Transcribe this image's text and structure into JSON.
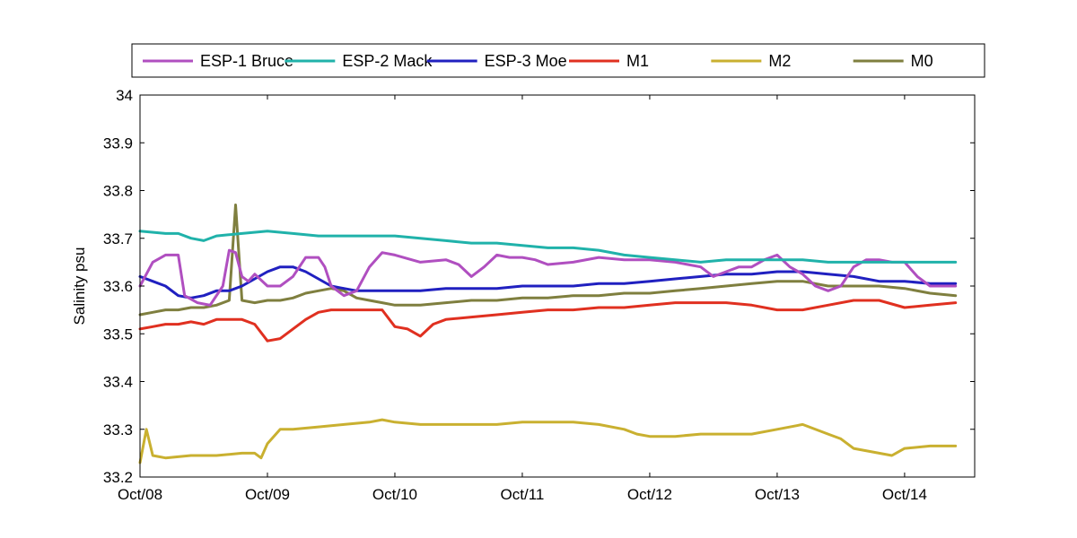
{
  "chart_data": {
    "type": "line",
    "title": "",
    "xlabel": "",
    "ylabel": "Salinity psu",
    "ylim": [
      33.2,
      34.0
    ],
    "yticks": [
      33.2,
      33.3,
      33.4,
      33.5,
      33.6,
      33.7,
      33.8,
      33.9,
      34.0
    ],
    "ytick_labels": [
      "33.2",
      "33.3",
      "33.4",
      "33.5",
      "33.6",
      "33.7",
      "33.8",
      "33.9",
      "34"
    ],
    "xlim": [
      0,
      6.55
    ],
    "xticks": [
      0,
      1,
      2,
      3,
      4,
      5,
      6
    ],
    "xtick_labels": [
      "Oct/08",
      "Oct/09",
      "Oct/10",
      "Oct/11",
      "Oct/12",
      "Oct/13",
      "Oct/14"
    ],
    "grid": false,
    "legend_position": "top",
    "series": [
      {
        "name": "ESP-1 Bruce",
        "color": "#b04fc0",
        "x": [
          0.0,
          0.1,
          0.2,
          0.3,
          0.35,
          0.45,
          0.55,
          0.65,
          0.7,
          0.75,
          0.8,
          0.85,
          0.9,
          1.0,
          1.1,
          1.2,
          1.3,
          1.4,
          1.45,
          1.5,
          1.6,
          1.7,
          1.8,
          1.9,
          2.0,
          2.2,
          2.4,
          2.5,
          2.6,
          2.7,
          2.8,
          2.9,
          3.0,
          3.1,
          3.2,
          3.4,
          3.6,
          3.8,
          4.0,
          4.2,
          4.4,
          4.5,
          4.6,
          4.7,
          4.8,
          4.9,
          5.0,
          5.1,
          5.2,
          5.3,
          5.4,
          5.5,
          5.6,
          5.7,
          5.8,
          5.9,
          6.0,
          6.1,
          6.2,
          6.3,
          6.4
        ],
        "y": [
          33.6,
          33.65,
          33.665,
          33.665,
          33.58,
          33.565,
          33.56,
          33.6,
          33.675,
          33.67,
          33.62,
          33.61,
          33.625,
          33.6,
          33.6,
          33.62,
          33.66,
          33.66,
          33.64,
          33.6,
          33.58,
          33.59,
          33.64,
          33.67,
          33.665,
          33.65,
          33.655,
          33.645,
          33.62,
          33.64,
          33.665,
          33.66,
          33.66,
          33.655,
          33.645,
          33.65,
          33.66,
          33.655,
          33.655,
          33.65,
          33.64,
          33.62,
          33.63,
          33.64,
          33.64,
          33.655,
          33.665,
          33.64,
          33.625,
          33.6,
          33.59,
          33.6,
          33.64,
          33.655,
          33.655,
          33.65,
          33.65,
          33.62,
          33.6,
          33.6,
          33.6
        ]
      },
      {
        "name": "ESP-2 Mack",
        "color": "#20b2aa",
        "x": [
          0.0,
          0.2,
          0.3,
          0.4,
          0.5,
          0.6,
          0.8,
          1.0,
          1.2,
          1.4,
          1.6,
          1.8,
          2.0,
          2.2,
          2.4,
          2.6,
          2.8,
          3.0,
          3.2,
          3.4,
          3.6,
          3.8,
          4.0,
          4.2,
          4.4,
          4.6,
          4.8,
          5.0,
          5.2,
          5.4,
          5.6,
          5.8,
          6.0,
          6.2,
          6.4
        ],
        "y": [
          33.715,
          33.71,
          33.71,
          33.7,
          33.695,
          33.705,
          33.71,
          33.715,
          33.71,
          33.705,
          33.705,
          33.705,
          33.705,
          33.7,
          33.695,
          33.69,
          33.69,
          33.685,
          33.68,
          33.68,
          33.675,
          33.665,
          33.66,
          33.655,
          33.65,
          33.655,
          33.655,
          33.655,
          33.655,
          33.65,
          33.65,
          33.65,
          33.65,
          33.65,
          33.65
        ]
      },
      {
        "name": "ESP-3 Moe",
        "color": "#2020c0",
        "x": [
          0.0,
          0.1,
          0.2,
          0.3,
          0.4,
          0.5,
          0.6,
          0.7,
          0.8,
          0.9,
          1.0,
          1.1,
          1.2,
          1.3,
          1.4,
          1.5,
          1.6,
          1.7,
          1.8,
          1.9,
          2.0,
          2.2,
          2.4,
          2.6,
          2.8,
          3.0,
          3.2,
          3.4,
          3.6,
          3.8,
          4.0,
          4.2,
          4.4,
          4.6,
          4.8,
          5.0,
          5.2,
          5.4,
          5.6,
          5.8,
          6.0,
          6.2,
          6.4
        ],
        "y": [
          33.62,
          33.61,
          33.6,
          33.58,
          33.575,
          33.58,
          33.59,
          33.59,
          33.6,
          33.615,
          33.63,
          33.64,
          33.64,
          33.63,
          33.615,
          33.6,
          33.595,
          33.59,
          33.59,
          33.59,
          33.59,
          33.59,
          33.595,
          33.595,
          33.595,
          33.6,
          33.6,
          33.6,
          33.605,
          33.605,
          33.61,
          33.615,
          33.62,
          33.625,
          33.625,
          33.63,
          33.63,
          33.625,
          33.62,
          33.61,
          33.61,
          33.605,
          33.605
        ]
      },
      {
        "name": "M1",
        "color": "#e03020",
        "x": [
          0.0,
          0.1,
          0.2,
          0.3,
          0.4,
          0.5,
          0.6,
          0.7,
          0.8,
          0.9,
          1.0,
          1.1,
          1.2,
          1.3,
          1.4,
          1.5,
          1.6,
          1.7,
          1.8,
          1.9,
          2.0,
          2.1,
          2.2,
          2.3,
          2.4,
          2.6,
          2.8,
          3.0,
          3.2,
          3.4,
          3.6,
          3.8,
          4.0,
          4.2,
          4.4,
          4.6,
          4.8,
          5.0,
          5.2,
          5.4,
          5.6,
          5.8,
          6.0,
          6.2,
          6.4
        ],
        "y": [
          33.51,
          33.515,
          33.52,
          33.52,
          33.525,
          33.52,
          33.53,
          33.53,
          33.53,
          33.52,
          33.485,
          33.49,
          33.51,
          33.53,
          33.545,
          33.55,
          33.55,
          33.55,
          33.55,
          33.55,
          33.515,
          33.51,
          33.495,
          33.52,
          33.53,
          33.535,
          33.54,
          33.545,
          33.55,
          33.55,
          33.555,
          33.555,
          33.56,
          33.565,
          33.565,
          33.565,
          33.56,
          33.55,
          33.55,
          33.56,
          33.57,
          33.57,
          33.555,
          33.56,
          33.565
        ]
      },
      {
        "name": "M2",
        "color": "#c9b030",
        "x": [
          0.0,
          0.05,
          0.1,
          0.2,
          0.4,
          0.6,
          0.8,
          0.9,
          0.95,
          1.0,
          1.1,
          1.2,
          1.4,
          1.6,
          1.8,
          1.9,
          2.0,
          2.2,
          2.4,
          2.6,
          2.8,
          3.0,
          3.2,
          3.4,
          3.6,
          3.8,
          3.9,
          4.0,
          4.2,
          4.4,
          4.6,
          4.8,
          5.0,
          5.2,
          5.4,
          5.5,
          5.6,
          5.8,
          5.9,
          6.0,
          6.2,
          6.4
        ],
        "y": [
          33.23,
          33.3,
          33.245,
          33.24,
          33.245,
          33.245,
          33.25,
          33.25,
          33.24,
          33.27,
          33.3,
          33.3,
          33.305,
          33.31,
          33.315,
          33.32,
          33.315,
          33.31,
          33.31,
          33.31,
          33.31,
          33.315,
          33.315,
          33.315,
          33.31,
          33.3,
          33.29,
          33.285,
          33.285,
          33.29,
          33.29,
          33.29,
          33.3,
          33.31,
          33.29,
          33.28,
          33.26,
          33.25,
          33.245,
          33.26,
          33.265,
          33.265
        ]
      },
      {
        "name": "M0",
        "color": "#7f7f3f",
        "x": [
          0.0,
          0.1,
          0.2,
          0.3,
          0.4,
          0.5,
          0.6,
          0.7,
          0.75,
          0.8,
          0.9,
          1.0,
          1.1,
          1.2,
          1.3,
          1.4,
          1.5,
          1.6,
          1.7,
          1.8,
          1.9,
          2.0,
          2.2,
          2.4,
          2.6,
          2.8,
          3.0,
          3.2,
          3.4,
          3.6,
          3.8,
          4.0,
          4.2,
          4.4,
          4.6,
          4.8,
          5.0,
          5.2,
          5.4,
          5.6,
          5.8,
          6.0,
          6.2,
          6.4
        ],
        "y": [
          33.54,
          33.545,
          33.55,
          33.55,
          33.555,
          33.555,
          33.56,
          33.57,
          33.77,
          33.57,
          33.565,
          33.57,
          33.57,
          33.575,
          33.585,
          33.59,
          33.595,
          33.59,
          33.575,
          33.57,
          33.565,
          33.56,
          33.56,
          33.565,
          33.57,
          33.57,
          33.575,
          33.575,
          33.58,
          33.58,
          33.585,
          33.585,
          33.59,
          33.595,
          33.6,
          33.605,
          33.61,
          33.61,
          33.6,
          33.6,
          33.6,
          33.595,
          33.585,
          33.58
        ]
      }
    ]
  }
}
